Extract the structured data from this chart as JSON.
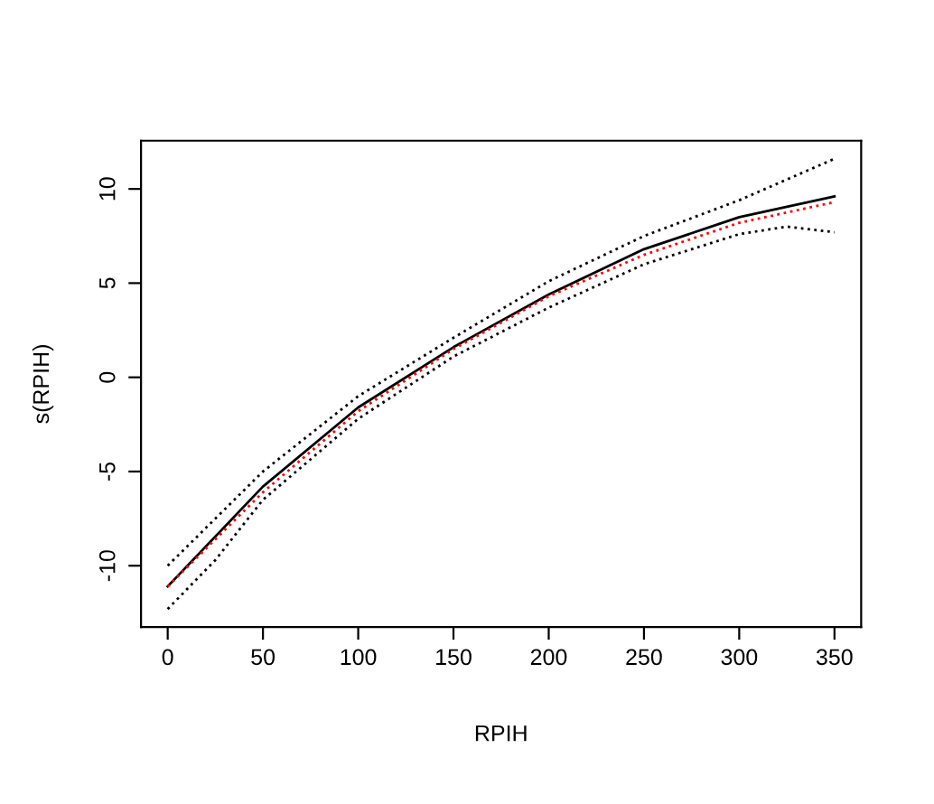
{
  "chart_data": {
    "type": "line",
    "xlabel": "RPIH",
    "ylabel": "s(RPIH)",
    "x": [
      0,
      50,
      100,
      150,
      200,
      250,
      300,
      350
    ],
    "series": [
      {
        "color": "#000000",
        "line_style": "solid",
        "values": [
          -11.1,
          -5.8,
          -1.6,
          1.6,
          4.4,
          6.8,
          8.5,
          9.6
        ]
      },
      {
        "color": "#ff0000",
        "line_style": "dotted",
        "values": [
          -11.1,
          -6.1,
          -1.8,
          1.5,
          4.3,
          6.5,
          8.2,
          9.3
        ]
      },
      {
        "color": "#000000",
        "line_style": "dotted",
        "values": [
          -10.0,
          -5.0,
          -1.0,
          2.1,
          5.1,
          7.5,
          9.4,
          11.6
        ]
      },
      {
        "color": "#000000",
        "line_style": "dotted",
        "x": [
          0,
          25,
          50,
          100,
          150,
          200,
          250,
          300,
          325,
          350
        ],
        "values": [
          -12.3,
          -9.7,
          -6.5,
          -2.2,
          1.1,
          3.7,
          6.0,
          7.6,
          8.0,
          7.7
        ]
      }
    ],
    "xlim": [
      -14,
      364
    ],
    "ylim": [
      -13.26,
      12.56
    ],
    "xticks": [
      0,
      50,
      100,
      150,
      200,
      250,
      300,
      350
    ],
    "yticks": [
      -10,
      -5,
      0,
      5,
      10
    ],
    "grid": false,
    "legend": false
  }
}
